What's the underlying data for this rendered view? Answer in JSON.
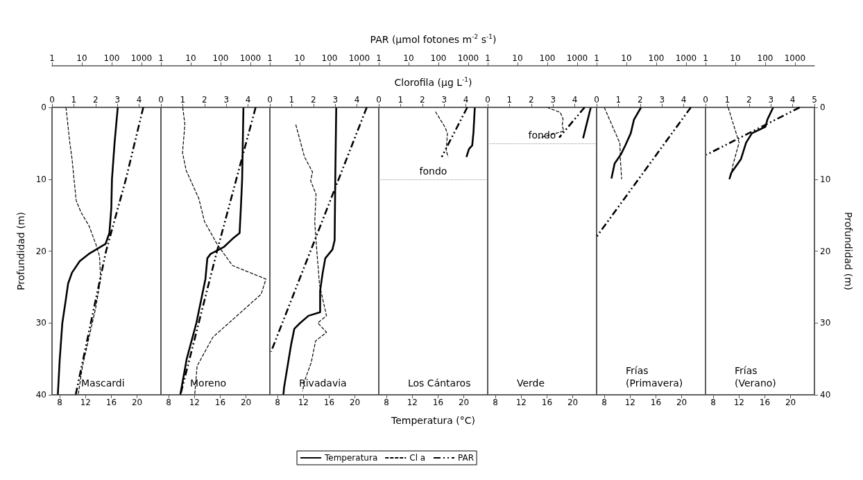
{
  "chart_data": [
    {
      "type": "line",
      "title": "Mascardi",
      "ylabel": "Profundidad (m)",
      "xlim": [
        6.8,
        23.7
      ],
      "xticks": [
        8,
        12,
        16,
        20
      ],
      "x2lim": [
        0,
        5
      ],
      "x2ticks": [
        0,
        1,
        2,
        3,
        4
      ],
      "ylim": [
        40,
        0
      ],
      "yticks": [
        0,
        10,
        20,
        30,
        40
      ],
      "series": [
        {
          "color": "#000000",
          "line_style": "solid",
          "x": [
            17.0,
            16.5,
            16.1,
            16.0,
            15.7,
            15.1,
            12.5,
            11.1,
            9.9,
            9.3,
            8.9,
            8.4,
            8.0,
            7.7
          ],
          "values": [
            0,
            5,
            10,
            14,
            17.5,
            19,
            20.4,
            21.4,
            23,
            24.5,
            27,
            30,
            35,
            40
          ]
        },
        {
          "color": "#000000",
          "axis": "x2",
          "line_style": "dashed",
          "x": [
            0.64,
            0.82,
            0.92,
            1.01,
            1.11,
            1.33,
            1.7,
            2.02,
            2.18,
            2.23,
            2.0,
            1.7,
            1.4,
            1.2
          ],
          "values": [
            0,
            5,
            7.2,
            10,
            13,
            14.6,
            16.5,
            19.1,
            20.7,
            23.9,
            28,
            32,
            36,
            40
          ]
        }
      ]
    },
    {
      "type": "line",
      "tick_labels": "x",
      "xlim": [
        1,
        4500
      ],
      "xticks": [
        1,
        10,
        100,
        1000
      ],
      "log": "x",
      "ylim": [
        40,
        0
      ],
      "series": [
        {
          "color": "#000000",
          "line_style": "dashdot",
          "x": [
            1150,
            300,
            65,
            20,
            6.2
          ],
          "values": [
            0,
            10,
            20,
            30,
            40
          ]
        }
      ]
    },
    {
      "type": "line",
      "title": "Moreno",
      "tick_labels": "x",
      "xlim": [
        6.8,
        23.7
      ],
      "xticks": [
        8,
        12,
        16,
        20
      ],
      "x2lim": [
        0,
        5
      ],
      "x2ticks": [
        0,
        1,
        2,
        3,
        4
      ],
      "ylim": [
        40,
        0
      ],
      "series": [
        {
          "color": "#000000",
          "line_style": "solid",
          "x": [
            19.6,
            19.4,
            19.2,
            19.0,
            17.9,
            16.6,
            14.5,
            14.0,
            13.7,
            12.3,
            10.8,
            9.8
          ],
          "values": [
            0,
            10,
            14,
            17.5,
            18.3,
            19.4,
            20.4,
            21,
            23.9,
            30,
            35,
            40
          ]
        },
        {
          "color": "#000000",
          "axis": "x2",
          "line_style": "dashed",
          "x": [
            1.0,
            1.1,
            0.99,
            1.16,
            1.74,
            2.0,
            2.59,
            3.28,
            4.82,
            4.6,
            2.38,
            1.66,
            1.55
          ],
          "values": [
            0,
            2.4,
            6.3,
            8.8,
            12.7,
            15.9,
            19.1,
            22,
            23.9,
            26,
            32,
            36,
            40
          ]
        }
      ]
    },
    {
      "type": "line",
      "tick_labels": "x",
      "xlim": [
        1,
        4500
      ],
      "xticks": [
        1,
        10,
        100,
        1000
      ],
      "log": "x",
      "ylim": [
        40,
        0
      ],
      "series": [
        {
          "color": "#000000",
          "line_style": "dashdot",
          "x": [
            1500,
            76,
            4.5
          ],
          "values": [
            0,
            20,
            40
          ]
        }
      ]
    },
    {
      "type": "line",
      "title": "Rivadavia",
      "tick_labels": "x",
      "xlim": [
        6.8,
        23.7
      ],
      "xticks": [
        8,
        12,
        16,
        20
      ],
      "x2lim": [
        0,
        5
      ],
      "x2ticks": [
        0,
        1,
        2,
        3,
        4
      ],
      "ylim": [
        40,
        0
      ],
      "series": [
        {
          "color": "#000000",
          "line_style": "solid",
          "x": [
            17.1,
            16.95,
            16.85,
            16.5,
            15.4,
            15.0,
            14.6,
            14.6,
            12.8,
            11.5,
            10.6,
            10.1,
            9.0,
            8.9
          ],
          "values": [
            0,
            10,
            18.5,
            19.8,
            21,
            23,
            25.5,
            28.5,
            29,
            30,
            30.8,
            33,
            39,
            40
          ]
        },
        {
          "color": "#000000",
          "axis": "x2",
          "line_style": "dashed",
          "x": [
            1.19,
            1.59,
            1.96,
            1.87,
            2.12,
            2.06,
            2.17,
            2.28,
            2.6,
            2.2,
            2.6,
            2.1,
            2.0,
            1.9,
            1.6,
            1.5
          ],
          "values": [
            2.4,
            6.9,
            9,
            10.2,
            12.1,
            16,
            20.5,
            24.7,
            29,
            30,
            31.3,
            32.5,
            34,
            35.5,
            38,
            39.5
          ]
        }
      ]
    },
    {
      "type": "line",
      "tick_labels": "x",
      "xlim": [
        1,
        4500
      ],
      "xticks": [
        1,
        10,
        100,
        1000
      ],
      "log": "x",
      "ylim": [
        40,
        0
      ],
      "series": [
        {
          "color": "#000000",
          "line_style": "dashdot",
          "x": [
            1780,
            1.1
          ],
          "values": [
            0,
            34
          ]
        }
      ]
    },
    {
      "type": "line",
      "title": "Los Cántaros",
      "xlabel": "Temperatura (°C)",
      "x2label": "Clorofila (μg L$^{-1}$)",
      "tick_labels": "x",
      "xlim": [
        6.8,
        23.7
      ],
      "xticks": [
        8,
        12,
        16,
        20
      ],
      "x2lim": [
        0,
        5
      ],
      "x2ticks": [
        0,
        1,
        2,
        3,
        4
      ],
      "ylim": [
        40,
        0
      ],
      "legend": "bottom",
      "ref_lines": [
        {
          "axis": "y",
          "value": 10,
          "label": "fondo",
          "color": "#999999",
          "line_style": "dotted"
        }
      ],
      "series": [
        {
          "name": "Temperatura",
          "color": "#000000",
          "line_style": "solid",
          "x": [
            21.7,
            21.5,
            21.3,
            20.8,
            20.4
          ],
          "values": [
            0,
            3.4,
            5.3,
            5.8,
            6.9
          ]
        },
        {
          "name": "Cl a",
          "color": "#000000",
          "axis": "x2",
          "line_style": "dashed",
          "x": [
            2.6,
            3.03,
            3.15,
            3.12,
            3.1,
            3.18
          ],
          "values": [
            0.6,
            2.7,
            3.6,
            4.9,
            6,
            6.9
          ]
        }
      ]
    },
    {
      "type": "line",
      "xlabel": "PAR (μmol fotones m$^{-2}$ s$^{-1}$)",
      "tick_labels": "x",
      "xlim": [
        1,
        4500
      ],
      "xticks": [
        1,
        10,
        100,
        1000
      ],
      "log": "x",
      "ylim": [
        40,
        0
      ],
      "legend": "bottom",
      "series": [
        {
          "name": "PAR",
          "color": "#000000",
          "line_style": "dashdot",
          "x": [
            930,
            129
          ],
          "values": [
            0,
            6.9
          ]
        }
      ]
    },
    {
      "type": "line",
      "title": "Verde",
      "tick_labels": "x",
      "xlim": [
        6.8,
        23.7
      ],
      "xticks": [
        8,
        12,
        16,
        20
      ],
      "x2lim": [
        0,
        5
      ],
      "x2ticks": [
        0,
        1,
        2,
        3,
        4
      ],
      "ylim": [
        40,
        0
      ],
      "ref_lines": [
        {
          "axis": "y",
          "value": 5,
          "label": "fondo",
          "color": "#999999",
          "line_style": "dotted"
        }
      ],
      "series": [
        {
          "color": "#000000",
          "line_style": "solid",
          "x": [
            22.8,
            21.6
          ],
          "values": [
            0,
            4.3
          ]
        },
        {
          "color": "#000000",
          "axis": "x2",
          "line_style": "dashed",
          "x": [
            2.72,
            3.33,
            3.46,
            3.42,
            3.49,
            2.32
          ],
          "values": [
            0,
            0.7,
            1.6,
            2.5,
            3.3,
            4.3
          ]
        }
      ]
    },
    {
      "type": "line",
      "tick_labels": "x",
      "xlim": [
        1,
        4500
      ],
      "xticks": [
        1,
        10,
        100,
        1000
      ],
      "log": "x",
      "ylim": [
        40,
        0
      ],
      "series": [
        {
          "color": "#000000",
          "line_style": "dashdot",
          "x": [
            1780,
            250
          ],
          "values": [
            0,
            4.2
          ]
        }
      ]
    },
    {
      "type": "line",
      "title": "Frías (Primavera)",
      "tick_labels": "x",
      "xlim": [
        6.8,
        23.7
      ],
      "xticks": [
        8,
        12,
        16,
        20
      ],
      "x2lim": [
        0,
        5
      ],
      "x2ticks": [
        0,
        1,
        2,
        3,
        4
      ],
      "ylim": [
        40,
        0
      ],
      "series": [
        {
          "color": "#000000",
          "line_style": "solid",
          "x": [
            13.7,
            12.6,
            12.1,
            11.3,
            10.6,
            9.6,
            9.1
          ],
          "values": [
            0,
            1.7,
            3.6,
            5.2,
            6.5,
            7.8,
            9.9
          ]
        },
        {
          "color": "#000000",
          "axis": "x2",
          "line_style": "dashed",
          "x": [
            0.35,
            1.07,
            1.09,
            1.15
          ],
          "values": [
            0,
            5,
            7.2,
            10
          ]
        }
      ]
    },
    {
      "type": "line",
      "tick_labels": "x",
      "xlim": [
        1,
        4500
      ],
      "xticks": [
        1,
        10,
        100,
        1000
      ],
      "log": "x",
      "ylim": [
        40,
        0
      ],
      "series": [
        {
          "color": "#000000",
          "line_style": "dashdot",
          "x": [
            1450,
            1
          ],
          "values": [
            0,
            18
          ]
        }
      ]
    },
    {
      "type": "line",
      "title": "Frías (Verano)",
      "xlim": [
        6.8,
        23.7
      ],
      "xticks": [
        8,
        12,
        16,
        20
      ],
      "x2lim": [
        0,
        5
      ],
      "x2ticks": [
        0,
        1,
        2,
        3,
        4,
        5
      ],
      "ylim": [
        40,
        0
      ],
      "yticks": [
        0,
        10,
        20,
        30,
        40
      ],
      "ylabel": "Profundidad (m)",
      "series": [
        {
          "color": "#000000",
          "line_style": "solid",
          "x": [
            17.3,
            16.4,
            16.1,
            14.0,
            13.1,
            12.3,
            10.8,
            10.5
          ],
          "values": [
            0,
            1.7,
            2.7,
            3.6,
            4.9,
            7.2,
            9.1,
            10
          ]
        },
        {
          "color": "#000000",
          "axis": "x2",
          "line_style": "dashed",
          "x": [
            1.04,
            1.54,
            1.25,
            1.18
          ],
          "values": [
            0,
            4.9,
            8.1,
            9.4
          ]
        }
      ]
    },
    {
      "type": "line",
      "tick_labels": "x",
      "xlim": [
        1,
        4500
      ],
      "xticks": [
        1,
        10,
        100,
        1000
      ],
      "log": "x",
      "ylim": [
        40,
        0
      ],
      "series": [
        {
          "color": "#000000",
          "line_style": "dashdot",
          "x": [
            1440,
            1.07
          ],
          "values": [
            0,
            6.6
          ]
        }
      ]
    }
  ]
}
